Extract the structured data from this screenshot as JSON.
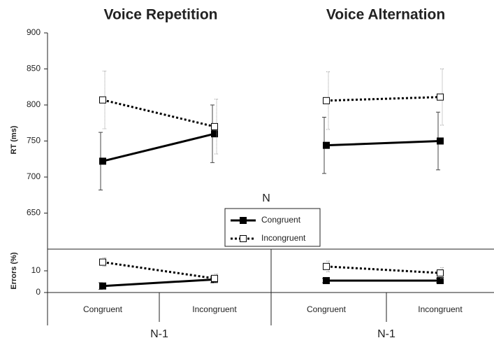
{
  "chart_data": [
    {
      "type": "line",
      "groups": [
        {
          "title": "Voice Repetition",
          "x_label": "N-1"
        },
        {
          "title": "Voice Alternation",
          "x_label": "N-1"
        }
      ],
      "categories": [
        "Congruent",
        "Incongruent",
        "Congruent",
        "Incongruent"
      ],
      "y_label": "RT (ms)",
      "ylim": [
        600,
        900
      ],
      "yticks": [
        650,
        700,
        750,
        800,
        850,
        900
      ],
      "legend_title": "N",
      "series": [
        {
          "name": "Congruent",
          "color": "#000000",
          "line_style": "solid",
          "marker_fill": "#000000",
          "values": [
            722,
            760,
            744,
            750
          ],
          "errors": [
            40,
            40,
            39,
            40
          ]
        },
        {
          "name": "Incongruent",
          "color": "#000000",
          "line_style": "dotted",
          "marker_fill": "#ffffff",
          "values": [
            807,
            770,
            806,
            811
          ],
          "errors": [
            40,
            38,
            40,
            39
          ]
        }
      ]
    },
    {
      "type": "line",
      "y_label": "Errors (%)",
      "ylim": [
        0,
        20
      ],
      "yticks": [
        0,
        10
      ],
      "series": [
        {
          "name": "Congruent",
          "color": "#000000",
          "line_style": "solid",
          "marker_fill": "#000000",
          "values": [
            3,
            6,
            5.5,
            5.5
          ],
          "errors": [
            1.5,
            1.5,
            1,
            1
          ]
        },
        {
          "name": "Incongruent",
          "color": "#000000",
          "line_style": "dotted",
          "marker_fill": "#ffffff",
          "values": [
            14,
            6.5,
            12,
            9
          ],
          "errors": [
            2,
            2,
            2.5,
            2.5
          ]
        }
      ]
    }
  ]
}
